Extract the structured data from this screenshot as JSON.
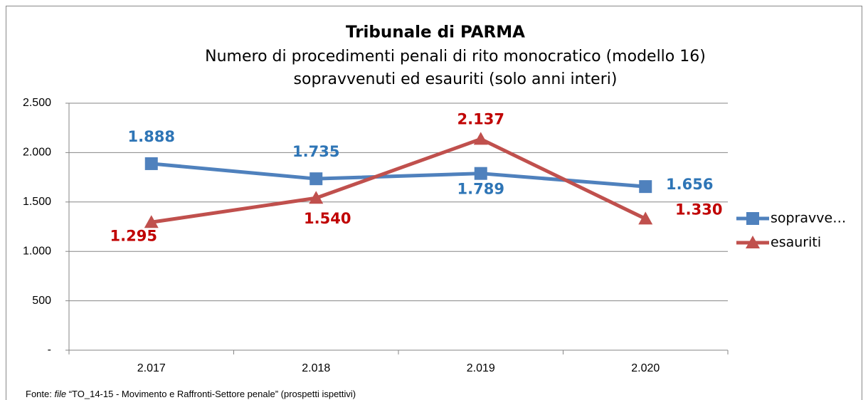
{
  "chart_data": {
    "type": "line",
    "title": "Tribunale di PARMA",
    "subtitle": [
      "Numero di procedimenti penali di rito monocratico (modello 16)",
      "sopravvenuti ed esauriti (solo anni interi)"
    ],
    "categories": [
      "2.017",
      "2.018",
      "2.019",
      "2.020"
    ],
    "series": [
      {
        "name": "sopravve…",
        "color": "#4f81bd",
        "label_color": "#2e75b6",
        "marker": "square",
        "values": [
          1888,
          1735,
          1789,
          1656
        ],
        "value_labels": [
          "1.888",
          "1.735",
          "1.789",
          "1.656"
        ]
      },
      {
        "name": "esauriti",
        "color": "#c0504d",
        "label_color": "#c00000",
        "marker": "triangle",
        "values": [
          1295,
          1540,
          2137,
          1330
        ],
        "value_labels": [
          "1.295",
          "1.540",
          "2.137",
          "1.330"
        ]
      }
    ],
    "ylim": [
      0,
      2500
    ],
    "yticks": [
      {
        "value": 0,
        "label": "-"
      },
      500,
      {
        "value": 1000,
        "label": "1.000"
      },
      {
        "value": 1500,
        "label": "1.500"
      },
      {
        "value": 2000,
        "label": "2.000"
      },
      {
        "value": 2500,
        "label": "2.500"
      }
    ],
    "grid": true,
    "legend": "right",
    "source": {
      "prefix": "Fonte: ",
      "italic": "file",
      "text": " “TO_14-15 - Movimento e Raffronti-Settore penale” (prospetti ispettivi)"
    }
  }
}
